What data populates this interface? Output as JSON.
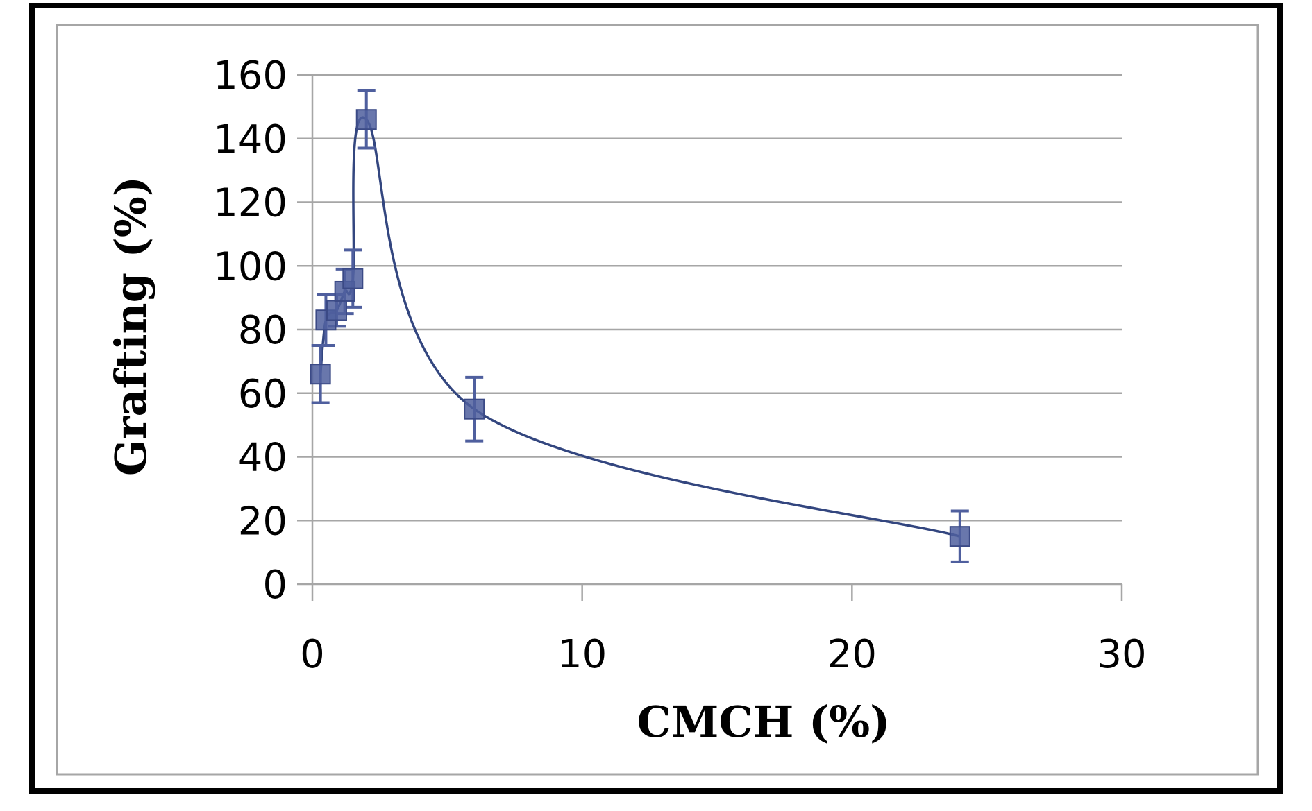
{
  "chart_data": {
    "type": "scatter",
    "xlabel": "CMCH (%)",
    "ylabel": "Grafting (%)",
    "xlim": [
      0,
      30
    ],
    "ylim": [
      0,
      160
    ],
    "x_ticks": [
      0,
      10,
      20,
      30
    ],
    "y_ticks": [
      0,
      20,
      40,
      60,
      80,
      100,
      120,
      140,
      160
    ],
    "grid": "horizontal",
    "legend": "none",
    "series": [
      {
        "x": [
          0.3,
          0.5,
          0.9,
          1.2,
          1.5,
          2.0,
          6.0,
          24.0
        ],
        "y": [
          66,
          83,
          86,
          92,
          96,
          146,
          55,
          15
        ],
        "error": [
          9,
          8,
          5,
          7,
          9,
          9,
          10,
          8
        ],
        "marker": "square",
        "smoothed_line": true
      }
    ],
    "colors": {
      "marker": "#4f5f9e",
      "line": "#33467f",
      "gridline": "#a6a6a6",
      "axis": "#a6a6a6"
    }
  }
}
